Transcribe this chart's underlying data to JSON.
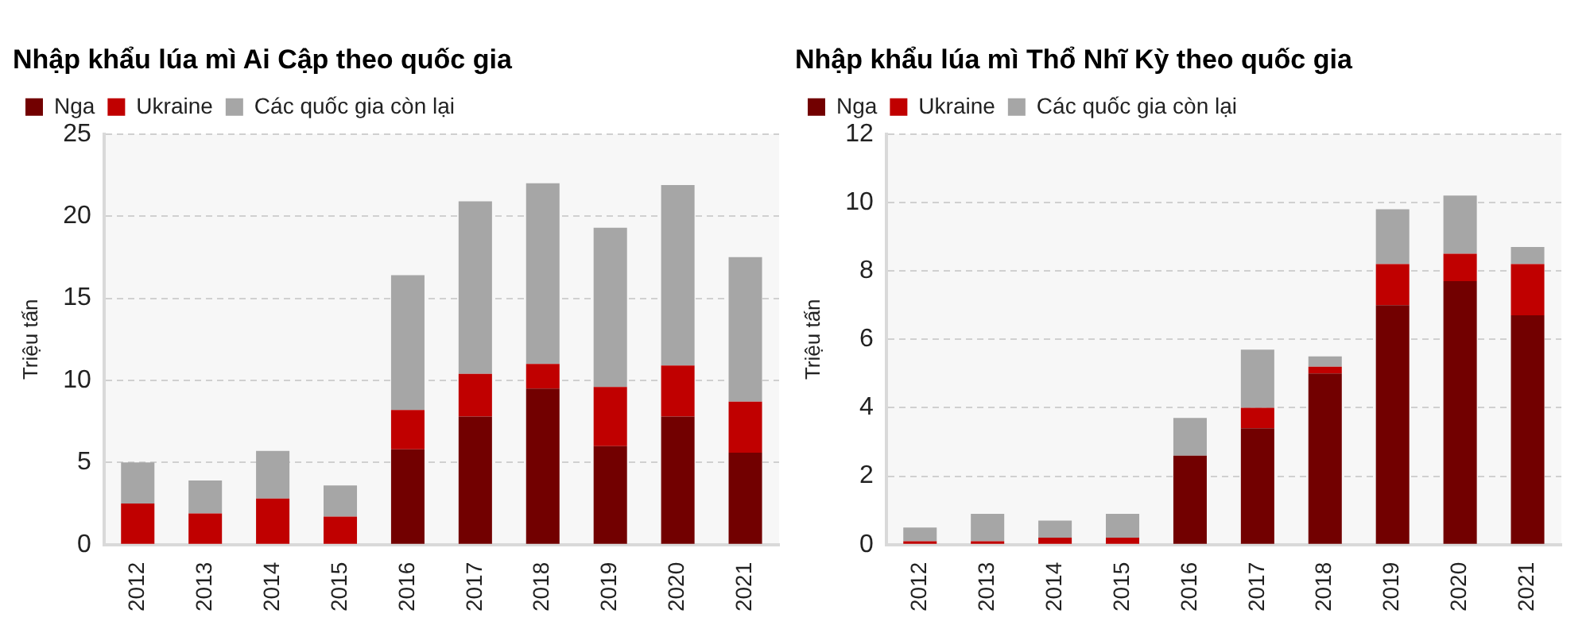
{
  "chart_data": [
    {
      "type": "bar",
      "title": "Nhập khẩu lúa mì Ai Cập theo quốc gia",
      "ylabel": "Triệu tấn",
      "categories": [
        "2012",
        "2013",
        "2014",
        "2015",
        "2016",
        "2017",
        "2018",
        "2019",
        "2020",
        "2021"
      ],
      "stacked": true,
      "legend": "top left",
      "grid": "y",
      "ylim": [
        0,
        25
      ],
      "yticks": [
        0,
        5,
        10,
        15,
        20,
        25
      ],
      "series": [
        {
          "name": "Nga",
          "color": "#720000",
          "values": [
            0,
            0,
            0,
            0,
            5.8,
            7.8,
            9.5,
            6.0,
            7.8,
            5.6
          ]
        },
        {
          "name": "Ukraine",
          "color": "#c00000",
          "values": [
            2.5,
            1.9,
            2.8,
            1.7,
            2.4,
            2.6,
            1.5,
            3.6,
            3.1,
            3.1
          ]
        },
        {
          "name": "Các quốc gia còn lại",
          "color": "#a6a6a6",
          "values": [
            2.5,
            2.0,
            2.9,
            1.9,
            8.2,
            10.5,
            11.0,
            9.7,
            11.0,
            8.8
          ]
        }
      ]
    },
    {
      "type": "bar",
      "title": "Nhập khẩu lúa mì Thổ Nhĩ Kỳ theo quốc gia",
      "ylabel": "Triệu tấn",
      "categories": [
        "2012",
        "2013",
        "2014",
        "2015",
        "2016",
        "2017",
        "2018",
        "2019",
        "2020",
        "2021"
      ],
      "stacked": true,
      "legend": "top left",
      "grid": "y",
      "ylim": [
        0,
        12
      ],
      "yticks": [
        0,
        2,
        4,
        6,
        8,
        10,
        12
      ],
      "series": [
        {
          "name": "Nga",
          "color": "#720000",
          "values": [
            0,
            0,
            0,
            0,
            2.6,
            3.4,
            5.0,
            7.0,
            7.7,
            6.7
          ]
        },
        {
          "name": "Ukraine",
          "color": "#c00000",
          "values": [
            0.1,
            0.1,
            0.2,
            0.2,
            0,
            0.6,
            0.2,
            1.2,
            0.8,
            1.5
          ]
        },
        {
          "name": "Các quốc gia còn lại",
          "color": "#a6a6a6",
          "values": [
            0.4,
            0.8,
            0.5,
            0.7,
            1.1,
            1.7,
            0.3,
            1.6,
            1.7,
            0.5
          ]
        }
      ]
    }
  ]
}
